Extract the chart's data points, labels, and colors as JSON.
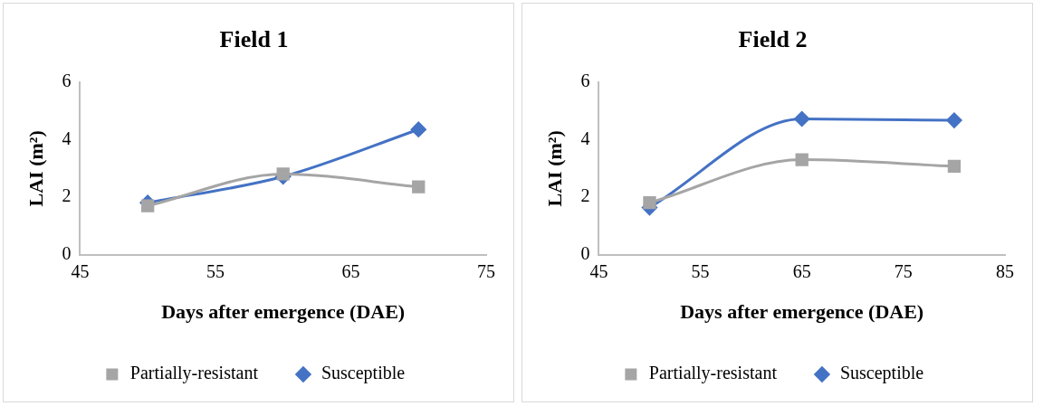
{
  "chart_data": [
    {
      "type": "line",
      "title": "Field 1",
      "xlabel": "Days after emergence (DAE)",
      "ylabel": "LAI (m²)",
      "x": [
        50,
        60,
        70
      ],
      "xlim": [
        45,
        75
      ],
      "xticks": [
        45,
        55,
        65,
        75
      ],
      "ylim": [
        0,
        6
      ],
      "yticks": [
        0,
        2,
        4,
        6
      ],
      "grid": false,
      "legend": "bottom",
      "series": [
        {
          "name": "Susceptible",
          "color": "#4472c4",
          "marker": "diamond",
          "values": [
            1.81,
            2.72,
            4.36
          ]
        },
        {
          "name": "Partially-resistant",
          "color": "#a5a5a5",
          "marker": "square",
          "values": [
            1.7,
            2.81,
            2.36
          ]
        }
      ]
    },
    {
      "type": "line",
      "title": "Field 2",
      "xlabel": "Days after emergence (DAE)",
      "ylabel": "LAI (m²)",
      "x": [
        50,
        65,
        80
      ],
      "xlim": [
        45,
        85
      ],
      "xticks": [
        45,
        55,
        65,
        75,
        85
      ],
      "ylim": [
        0,
        6
      ],
      "yticks": [
        0,
        2,
        4,
        6
      ],
      "grid": false,
      "legend": "bottom",
      "series": [
        {
          "name": "Susceptible",
          "color": "#4472c4",
          "marker": "diamond",
          "values": [
            1.64,
            4.73,
            4.68
          ]
        },
        {
          "name": "Partially-resistant",
          "color": "#a5a5a5",
          "marker": "square",
          "values": [
            1.81,
            3.31,
            3.08
          ]
        }
      ]
    }
  ]
}
